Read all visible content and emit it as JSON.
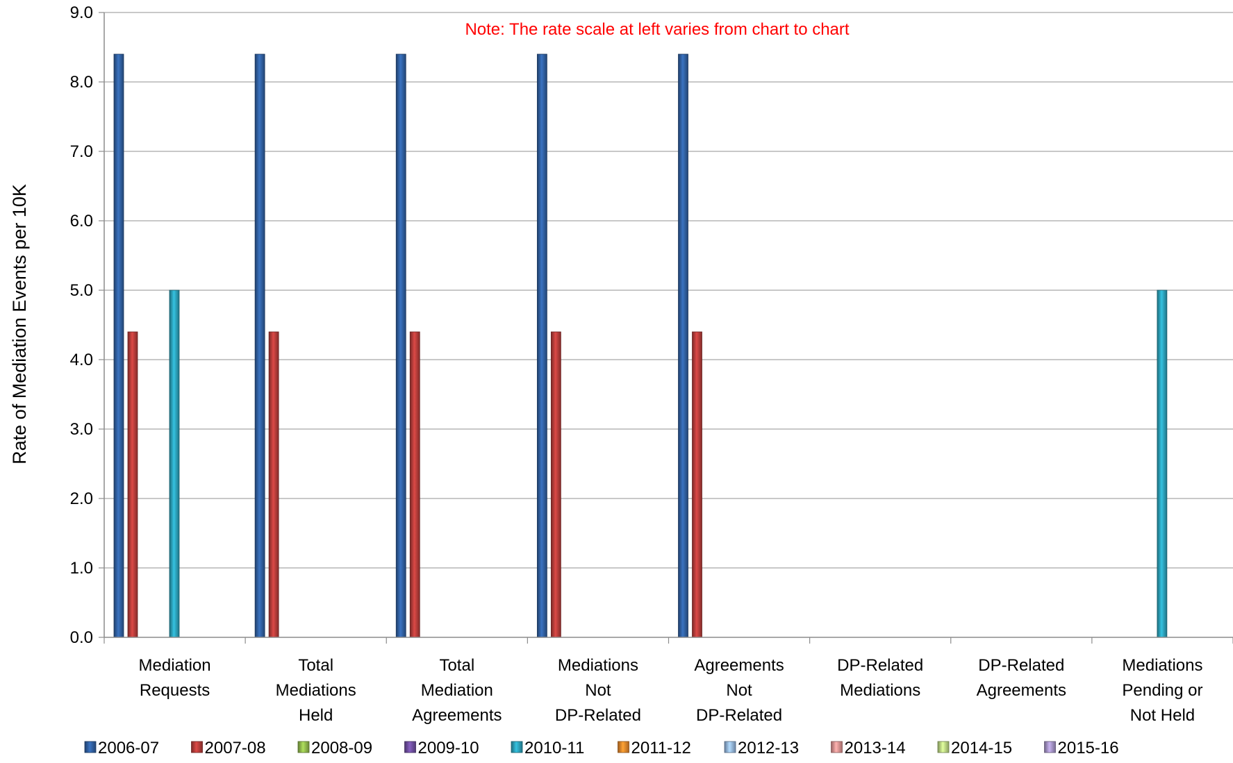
{
  "chart_data": {
    "type": "bar",
    "title": "",
    "note": "Note:  The rate scale at left varies from chart to chart",
    "note_color": "#ff0000",
    "ylabel": "Rate of Mediation Events per 10K",
    "xlabel": "",
    "ylim": [
      0,
      9
    ],
    "yticks": [
      "0.0",
      "1.0",
      "2.0",
      "3.0",
      "4.0",
      "5.0",
      "6.0",
      "7.0",
      "8.0",
      "9.0"
    ],
    "grid": true,
    "legend_position": "bottom",
    "categories": [
      [
        "Mediation",
        "Requests"
      ],
      [
        "Total",
        "Mediations",
        "Held"
      ],
      [
        "Total",
        "Mediation",
        "Agreements"
      ],
      [
        "Mediations",
        "Not",
        "DP-Related"
      ],
      [
        "Agreements",
        "Not",
        "DP-Related"
      ],
      [
        "DP-Related",
        "Mediations"
      ],
      [
        "DP-Related",
        "Agreements"
      ],
      [
        "Mediations",
        "Pending or",
        "Not Held"
      ]
    ],
    "series": [
      {
        "name": "2006-07",
        "color": "#2e5c9a",
        "values": [
          8.4,
          8.4,
          8.4,
          8.4,
          8.4,
          0,
          0,
          0
        ]
      },
      {
        "name": "2007-08",
        "color": "#b03a38",
        "values": [
          4.4,
          4.4,
          4.4,
          4.4,
          4.4,
          0,
          0,
          0
        ]
      },
      {
        "name": "2008-09",
        "color": "#8cb34a",
        "values": [
          0,
          0,
          0,
          0,
          0,
          0,
          0,
          0
        ]
      },
      {
        "name": "2009-10",
        "color": "#6b4c9a",
        "values": [
          0,
          0,
          0,
          0,
          0,
          0,
          0,
          0
        ]
      },
      {
        "name": "2010-11",
        "color": "#2a9bb3",
        "values": [
          5.0,
          0,
          0,
          0,
          0,
          0,
          0,
          5.0
        ]
      },
      {
        "name": "2011-12",
        "color": "#e0822a",
        "values": [
          0,
          0,
          0,
          0,
          0,
          0,
          0,
          0
        ]
      },
      {
        "name": "2012-13",
        "color": "#8fb0d9",
        "values": [
          0,
          0,
          0,
          0,
          0,
          0,
          0,
          0
        ]
      },
      {
        "name": "2013-14",
        "color": "#d98e8d",
        "values": [
          0,
          0,
          0,
          0,
          0,
          0,
          0,
          0
        ]
      },
      {
        "name": "2014-15",
        "color": "#b5d17f",
        "values": [
          0,
          0,
          0,
          0,
          0,
          0,
          0,
          0
        ]
      },
      {
        "name": "2015-16",
        "color": "#a08fc1",
        "values": [
          0,
          0,
          0,
          0,
          0,
          0,
          0,
          0
        ]
      }
    ]
  }
}
